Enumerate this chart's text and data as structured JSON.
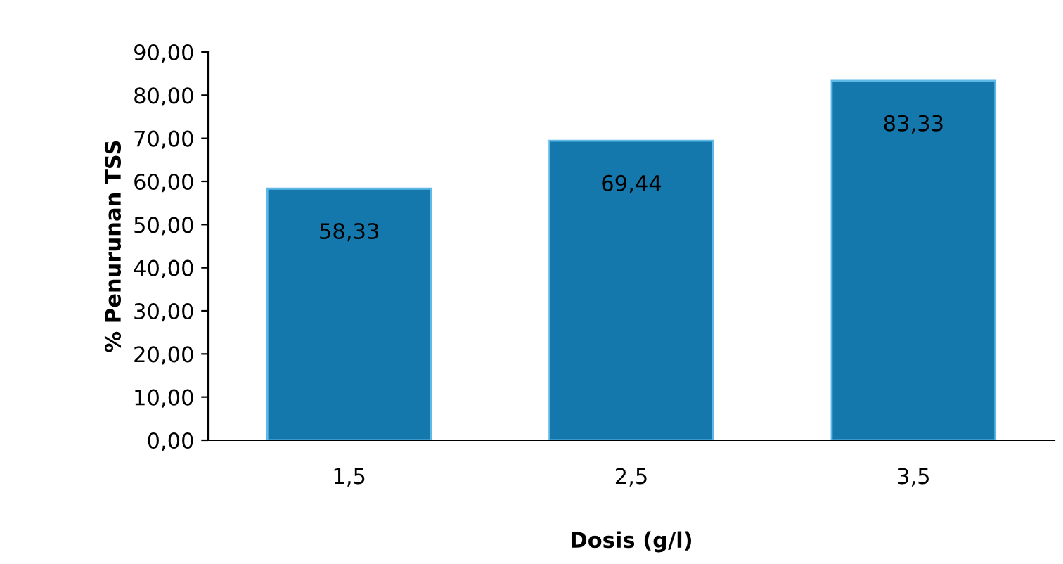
{
  "chart_data": {
    "type": "bar",
    "xlabel": "Dosis (g/l)",
    "ylabel": "% Penurunan TSS",
    "categories": [
      "1,5",
      "2,5",
      "3,5"
    ],
    "values": [
      58.33,
      69.44,
      83.33
    ],
    "value_labels": [
      "58,33",
      "69,44",
      "83,33"
    ],
    "color": "#1478ad",
    "ylim": [
      0,
      90
    ],
    "yticks": [
      {
        "value": 0,
        "label": "0,00"
      },
      {
        "value": 10,
        "label": "10,00"
      },
      {
        "value": 20,
        "label": "20,00"
      },
      {
        "value": 30,
        "label": "30,00"
      },
      {
        "value": 40,
        "label": "40,00"
      },
      {
        "value": 50,
        "label": "50,00"
      },
      {
        "value": 60,
        "label": "60,00"
      },
      {
        "value": 70,
        "label": "70,00"
      },
      {
        "value": 80,
        "label": "80,00"
      },
      {
        "value": 90,
        "label": "90,00"
      }
    ],
    "grid": false,
    "legend": false
  }
}
